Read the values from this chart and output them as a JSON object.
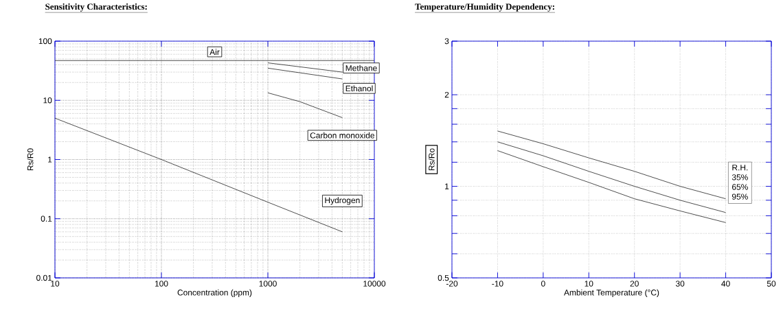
{
  "chart_data": [
    {
      "type": "line",
      "title": "Sensitivity Characteristics:",
      "xlabel": "Concentration (ppm)",
      "ylabel": "Rs/R0",
      "log": "xy",
      "xlim": [
        10,
        10000
      ],
      "ylim": [
        0.01,
        100
      ],
      "xticks": [
        10,
        100,
        1000,
        10000
      ],
      "yticks": [
        0.01,
        0.1,
        1,
        10,
        100
      ],
      "grid": true,
      "series": [
        {
          "name": "Air",
          "color": "#000000",
          "x": [
            10,
            10000
          ],
          "values": [
            47,
            47
          ]
        },
        {
          "name": "Methane",
          "color": "#000000",
          "x": [
            1000,
            5000
          ],
          "values": [
            43,
            30
          ]
        },
        {
          "name": "Ethanol",
          "color": "#000000",
          "x": [
            1000,
            5000
          ],
          "values": [
            35,
            23
          ]
        },
        {
          "name": "Carbon monoxide",
          "color": "#000000",
          "x": [
            1000,
            2000,
            5000
          ],
          "values": [
            13.4,
            9.5,
            5.1
          ]
        },
        {
          "name": "Hydrogen",
          "color": "#000000",
          "x": [
            10,
            100,
            1000,
            5000
          ],
          "values": [
            5.0,
            1.0,
            0.19,
            0.06
          ]
        }
      ]
    },
    {
      "type": "line",
      "title": "Temperature/Humidity Dependency:",
      "xlabel": "Ambient Temperature (°C)",
      "ylabel": "Rs/Ro",
      "log": "y",
      "xlim": [
        -20,
        50
      ],
      "ylim": [
        0.5,
        3
      ],
      "xticks": [
        -20,
        -10,
        0,
        10,
        20,
        30,
        40,
        50
      ],
      "yticks": [
        0.5,
        {
          "value": 0.6,
          "label": null
        },
        {
          "value": 0.7,
          "label": null
        },
        {
          "value": 0.8,
          "label": null
        },
        {
          "value": 0.9,
          "label": null
        },
        1,
        {
          "value": 1.2,
          "label": null
        },
        {
          "value": 1.4,
          "label": null
        },
        {
          "value": 1.6,
          "label": null
        },
        {
          "value": 1.8,
          "label": null
        },
        2,
        3
      ],
      "grid": true,
      "legend": "right",
      "legend_title": "R.H.",
      "x": [
        -10,
        0,
        10,
        20,
        30,
        40
      ],
      "series": [
        {
          "name": "35%",
          "color": "#000000",
          "values": [
            1.52,
            1.38,
            1.24,
            1.12,
            1.0,
            0.91
          ]
        },
        {
          "name": "65%",
          "color": "#000000",
          "values": [
            1.4,
            1.26,
            1.12,
            1.0,
            0.9,
            0.82
          ]
        },
        {
          "name": "95%",
          "color": "#000000",
          "values": [
            1.31,
            1.16,
            1.03,
            0.91,
            0.83,
            0.76
          ]
        }
      ]
    }
  ]
}
